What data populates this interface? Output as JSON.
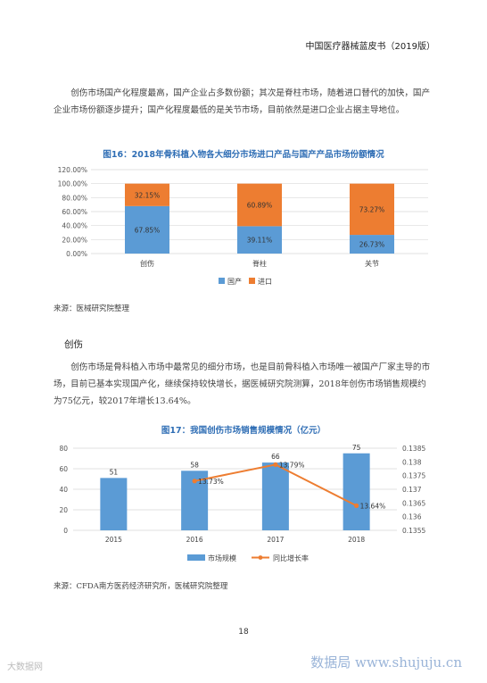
{
  "header": {
    "title": "中国医疗器械蓝皮书（2019版）"
  },
  "paragraph1": "创伤市场国产化程度最高，国产企业占多数份额；其次是脊柱市场，随着进口替代的加快，国产企业市场份额逐步提升；国产化程度最低的是关节市场，目前依然是进口企业占据主导地位。",
  "section_title": "创伤",
  "paragraph2": "创伤市场是骨科植入市场中最常见的细分市场，也是目前骨科植入市场唯一被国产厂家主导的市场，目前已基本实现国产化，继续保持较快增长，据医械研究院测算，2018年创伤市场销售规模约为75亿元，较2017年增长13.64%。",
  "source1": "来源：医械研究院整理",
  "source2": "来源：CFDA南方医药经济研究所，医械研究院整理",
  "page_number": "18",
  "watermark_left": "大数据网",
  "watermark_right": "数据局 www.shujuju.cn",
  "chart_data": [
    {
      "type": "bar",
      "stacked": true,
      "title": "图16：2018年骨科植入物各大细分市场进口产品与国产产品市场份额情况",
      "categories": [
        "创伤",
        "脊柱",
        "关节"
      ],
      "series": [
        {
          "name": "国产",
          "values": [
            67.85,
            39.11,
            26.73
          ],
          "labels": [
            "67.85%",
            "39.11%",
            "26.73%"
          ],
          "color": "#5b9bd5"
        },
        {
          "name": "进口",
          "values": [
            32.15,
            60.89,
            73.27
          ],
          "labels": [
            "32.15%",
            "60.89%",
            "73.27%"
          ],
          "color": "#ed7d31"
        }
      ],
      "ylim": [
        0,
        120
      ],
      "yticks": [
        "0.00%",
        "20.00%",
        "40.00%",
        "60.00%",
        "80.00%",
        "100.00%",
        "120.00%"
      ],
      "grid": true,
      "legend": "bottom"
    },
    {
      "type": "bar",
      "title": "图17：我国创伤市场销售规模情况（亿元）",
      "categories": [
        "2015",
        "2016",
        "2017",
        "2018"
      ],
      "series": [
        {
          "name": "市场规模",
          "type": "bar",
          "values": [
            51,
            58,
            66,
            75
          ],
          "labels": [
            "51",
            "58",
            "66",
            "75"
          ],
          "color": "#5b9bd5",
          "axis": "left"
        },
        {
          "name": "同比增长率",
          "type": "line",
          "values": [
            null,
            0.1373,
            0.1379,
            0.1364
          ],
          "labels": [
            "",
            "13.73%",
            "13.79%",
            "13.64%"
          ],
          "color": "#ed7d31",
          "axis": "right"
        }
      ],
      "ylim": [
        0,
        80
      ],
      "yticks": [
        "0",
        "20",
        "40",
        "60",
        "80"
      ],
      "y2lim": [
        0.1355,
        0.1385
      ],
      "y2ticks": [
        "0.1355",
        "0.136",
        "0.1365",
        "0.137",
        "0.1375",
        "0.138",
        "0.1385"
      ],
      "grid": true,
      "legend": "bottom"
    }
  ]
}
